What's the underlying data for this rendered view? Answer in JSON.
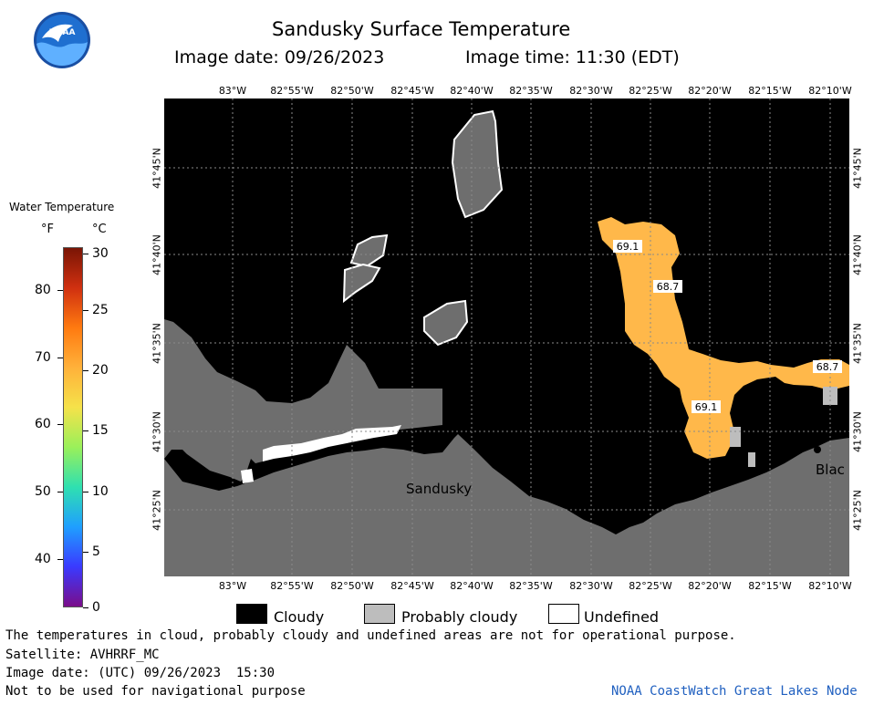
{
  "header": {
    "logo_text": "NOAA",
    "title": "Sandusky Surface Temperature",
    "image_date": "Image date: 09/26/2023",
    "image_time": "Image time: 11:30 (EDT)"
  },
  "legend": {
    "title": "Water Temperature",
    "unit_f": "°F",
    "unit_c": "°C",
    "f_ticks": [
      "80",
      "70",
      "60",
      "50",
      "40"
    ],
    "c_ticks": [
      "30",
      "25",
      "20",
      "15",
      "10",
      "5",
      "0"
    ],
    "colors": [
      "#7a0d8a",
      "#3a3aff",
      "#1f9fff",
      "#2fe0b0",
      "#9af05a",
      "#f5e24a",
      "#ffb13a",
      "#ff7a10",
      "#d03010",
      "#7a1505"
    ]
  },
  "map": {
    "lon_labels": [
      "83°W",
      "82°55'W",
      "82°50'W",
      "82°45'W",
      "82°40'W",
      "82°35'W",
      "82°30'W",
      "82°25'W",
      "82°20'W",
      "82°15'W",
      "82°10'W"
    ],
    "lat_labels": [
      "41°45'N",
      "41°40'N",
      "41°35'N",
      "41°30'N",
      "41°25'N"
    ],
    "city_label": "Sandusky",
    "city_label_2": "Blac",
    "temp_labels": [
      "69.1",
      "68.7",
      "68.7",
      "69.1"
    ],
    "colors": {
      "water_cloudy": "#000000",
      "land": "#6e6e6e",
      "probably_cloudy": "#bdbdbd",
      "warm_water": "#ffb84a"
    }
  },
  "key": {
    "cloudy": "Cloudy",
    "probably_cloudy": "Probably cloudy",
    "undefined": "Undefined"
  },
  "footer": {
    "disclaimer": "The temperatures in cloud, probably cloudy and undefined areas are not for operational purpose.",
    "satellite": "Satellite: AVHRRF_MC",
    "utc_date": "Image date: (UTC) 09/26/2023  15:30",
    "nav": "Not to be used for navigational purpose",
    "credit": "NOAA CoastWatch Great Lakes Node"
  }
}
